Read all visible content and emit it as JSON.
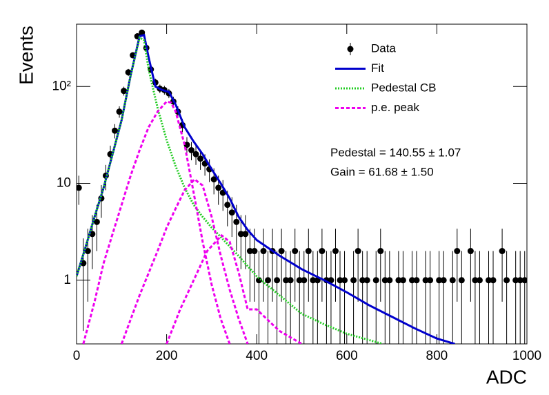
{
  "chart_data": {
    "type": "errorbar",
    "xlabel": "ADC",
    "ylabel": "Events",
    "xlim": [
      0,
      1000
    ],
    "ylim": [
      0.22,
      440
    ],
    "log_y": true,
    "xticks": [
      0,
      200,
      400,
      600,
      800,
      1000
    ],
    "yticks": [
      1,
      10,
      {
        "value": 100,
        "label": "10²"
      }
    ],
    "legend": "top right",
    "annotations": [
      "Pedestal = 140.55 ± 1.07",
      "Gain = 61.68 ± 1.50"
    ],
    "series": [
      {
        "name": "Data",
        "color": "#000000",
        "style": "points",
        "x": [
          5,
          15,
          25,
          35,
          45,
          55,
          65,
          75,
          85,
          95,
          105,
          115,
          125,
          135,
          145,
          155,
          165,
          175,
          185,
          195,
          205,
          215,
          225,
          235,
          245,
          255,
          265,
          275,
          285,
          295,
          305,
          315,
          325,
          335,
          345,
          355,
          365,
          375,
          385,
          395,
          405,
          415,
          425,
          435,
          445,
          455,
          465,
          475,
          485,
          495,
          505,
          515,
          525,
          535,
          545,
          555,
          565,
          575,
          585,
          595,
          605,
          615,
          625,
          635,
          645,
          655,
          665,
          675,
          685,
          695,
          705,
          715,
          725,
          735,
          745,
          755,
          765,
          775,
          785,
          795,
          805,
          815,
          825,
          835,
          845,
          855,
          865,
          875,
          885,
          895,
          905,
          915,
          925,
          935,
          945,
          955,
          965,
          975,
          985,
          995
        ],
        "values": [
          9,
          1.5,
          2,
          3,
          4,
          7,
          12,
          20,
          35,
          55,
          90,
          140,
          210,
          330,
          360,
          250,
          150,
          110,
          95,
          92,
          85,
          70,
          55,
          40,
          25,
          22,
          20,
          18,
          16,
          14,
          11,
          9,
          8,
          6,
          5,
          4,
          3,
          3,
          2,
          2,
          1,
          2,
          1,
          2,
          1,
          2,
          1,
          1,
          2,
          1,
          1,
          2,
          1,
          1,
          2,
          1,
          1,
          2,
          1,
          1,
          null,
          1,
          2,
          1,
          1,
          null,
          1,
          2,
          1,
          1,
          null,
          1,
          1,
          null,
          1,
          1,
          null,
          1,
          1,
          null,
          1,
          1,
          null,
          1,
          2,
          1,
          null,
          2,
          1,
          1,
          null,
          1,
          1,
          null,
          2,
          1,
          null,
          1,
          1,
          1
        ],
        "errors": [
          3,
          1.2,
          1.4,
          1.7,
          2,
          2.6,
          3.5,
          4.5,
          5.9,
          7.4,
          9.5,
          11.8,
          14.5,
          18.2,
          19,
          15.8,
          12.2,
          10.5,
          9.7,
          9.6,
          9.2,
          8.4,
          7.4,
          6.3,
          5,
          4.7,
          4.5,
          4.2,
          4,
          3.7,
          3.3,
          3,
          2.8,
          2.4,
          2.2,
          2,
          1.7,
          1.7,
          1.4,
          1.4,
          1,
          1.4,
          1,
          1.4,
          1,
          1.4,
          1,
          1,
          1.4,
          1,
          1,
          1.4,
          1,
          1,
          1.4,
          1,
          1,
          1.4,
          1,
          1,
          null,
          1,
          1.4,
          1,
          1,
          null,
          1,
          1.4,
          1,
          1,
          null,
          1,
          1,
          null,
          1,
          1,
          null,
          1,
          1,
          null,
          1,
          1,
          null,
          1,
          1.4,
          1,
          null,
          1.4,
          1,
          1,
          null,
          1,
          1,
          null,
          1.4,
          1,
          null,
          1,
          1,
          1
        ]
      },
      {
        "name": "Fit",
        "color": "#0000cc",
        "style": "solid",
        "x": [
          0,
          20,
          40,
          60,
          80,
          100,
          120,
          140,
          150,
          160,
          175,
          190,
          205,
          220,
          240,
          260,
          280,
          300,
          320,
          340,
          360,
          380,
          400,
          450,
          500,
          550,
          600,
          650,
          700,
          750,
          800,
          840
        ],
        "values": [
          1.1,
          2.2,
          4.5,
          9,
          20,
          45,
          130,
          330,
          340,
          200,
          100,
          92,
          88,
          65,
          38,
          27,
          20,
          14,
          10,
          7,
          4.5,
          3.3,
          2.6,
          1.8,
          1.3,
          1.0,
          0.75,
          0.55,
          0.42,
          0.32,
          0.25,
          0.22
        ]
      },
      {
        "name": "Pedestal CB",
        "color": "#22cc22",
        "style": "dotted",
        "x": [
          0,
          20,
          40,
          60,
          80,
          100,
          120,
          140,
          150,
          160,
          180,
          200,
          220,
          240,
          260,
          280,
          300,
          350,
          400,
          450,
          500,
          550,
          600,
          680
        ],
        "values": [
          1.1,
          2.2,
          4.5,
          9,
          20,
          45,
          130,
          320,
          300,
          150,
          60,
          28,
          15,
          9,
          6,
          4.5,
          3.5,
          2,
          1.1,
          0.7,
          0.45,
          0.35,
          0.28,
          0.22
        ]
      },
      {
        "name": "p.e. peak",
        "color": "#ee00ee",
        "style": "dashed",
        "x": [
          15,
          40,
          60,
          80,
          100,
          120,
          140,
          160,
          180,
          200,
          210,
          220,
          240,
          260,
          280,
          300,
          320,
          340
        ],
        "values": [
          0.22,
          0.6,
          1.5,
          3,
          6,
          12,
          22,
          38,
          55,
          70,
          68,
          55,
          25,
          8,
          2.5,
          0.9,
          0.4,
          0.22
        ]
      },
      {
        "color": "#ee00ee",
        "style": "dashed",
        "x": [
          100,
          140,
          180,
          200,
          220,
          240,
          262,
          280,
          300,
          320,
          340,
          360,
          380
        ],
        "values": [
          0.22,
          0.7,
          2,
          3.5,
          5.5,
          8.5,
          11,
          9.5,
          4.5,
          1.8,
          0.8,
          0.4,
          0.22
        ]
      },
      {
        "color": "#ee00ee",
        "style": "dashed",
        "x": [
          200,
          230,
          260,
          290,
          322,
          340,
          360,
          380,
          400,
          450,
          500
        ],
        "values": [
          0.22,
          0.5,
          1,
          2,
          2.9,
          2.5,
          1.2,
          0.5,
          0.5,
          0.3,
          0.22
        ]
      }
    ]
  }
}
